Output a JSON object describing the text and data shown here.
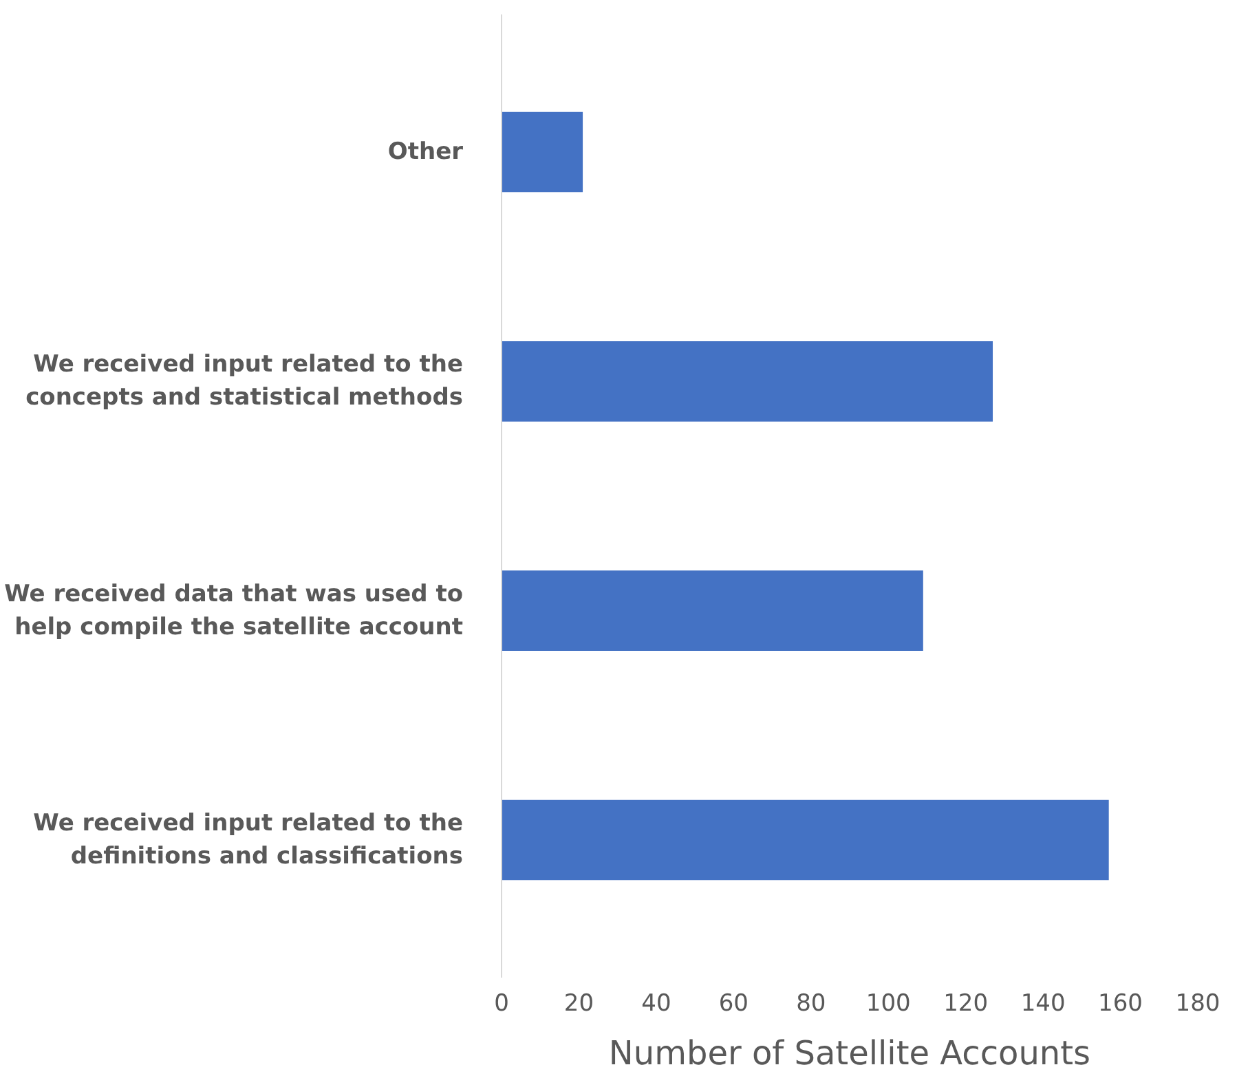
{
  "chart_data": {
    "type": "bar",
    "orientation": "horizontal",
    "xlabel": "Number of Satellite Accounts",
    "categories": [
      "Other",
      "We received input related to the concepts and statistical methods",
      "We received data that was used to help compile the satellite account",
      "We received input related to the definitions and classifications"
    ],
    "values": [
      21,
      127,
      109,
      157
    ],
    "color": "#4472c4",
    "xlim": [
      0,
      180
    ],
    "xticks": [
      0,
      20,
      40,
      60,
      80,
      100,
      120,
      140,
      160,
      180
    ],
    "grid": false
  }
}
